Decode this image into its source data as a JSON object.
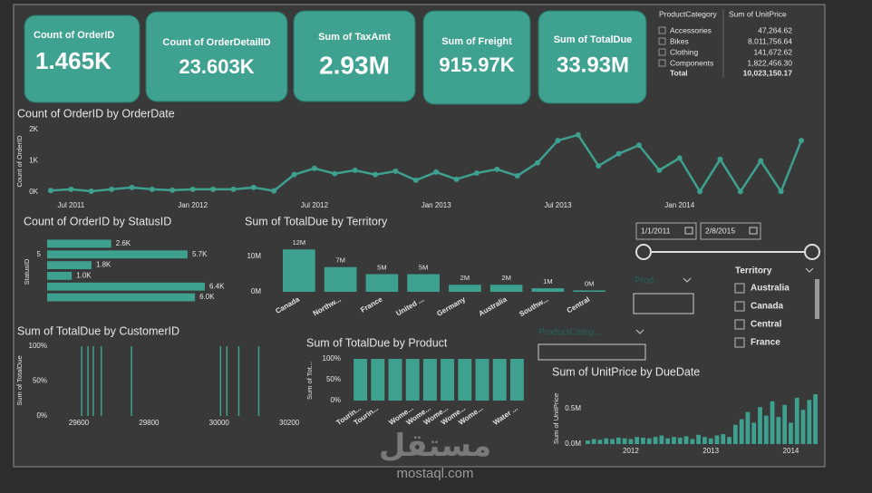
{
  "cards": [
    {
      "label": "Count of OrderID",
      "value": "1.465K"
    },
    {
      "label": "Count of OrderDetailID",
      "value": "23.603K"
    },
    {
      "label": "Sum of TaxAmt",
      "value": "2.93M"
    },
    {
      "label": "Sum of Freight",
      "value": "915.97K"
    },
    {
      "label": "Sum of TotalDue",
      "value": "33.93M"
    }
  ],
  "table": {
    "headers": [
      "ProductCategory",
      "Sum of UnitPrice"
    ],
    "rows": [
      [
        "Accessories",
        "47,264.62"
      ],
      [
        "Bikes",
        "8,011,756.64"
      ],
      [
        "Clothing",
        "141,672.62"
      ],
      [
        "Components",
        "1,822,456.30"
      ]
    ],
    "total": [
      "Total",
      "10,023,150.17"
    ]
  },
  "slicers": {
    "date_start": "1/1/2011",
    "date_end": "2/8/2015",
    "product": "Prod...",
    "product_category": "ProductCateg...",
    "territory": {
      "title": "Territory",
      "options": [
        "Australia",
        "Canada",
        "Central",
        "France"
      ]
    }
  },
  "watermark": {
    "logo": "مستقل",
    "site": "mostaql.com"
  },
  "chart_data": [
    {
      "type": "line",
      "title": "Count of OrderID by OrderDate",
      "ylabel": "Count of OrderID",
      "color": "#3ea08f",
      "categories": [
        null,
        "Jul 2011",
        null,
        null,
        null,
        null,
        null,
        "Jan 2012",
        null,
        null,
        null,
        null,
        null,
        "Jul 2012",
        null,
        null,
        null,
        null,
        null,
        "Jan 2013",
        null,
        null,
        null,
        null,
        null,
        "Jul 2013",
        null,
        null,
        null,
        null,
        null,
        "Jan 2014",
        null,
        null,
        null,
        null,
        null,
        null
      ],
      "values": [
        50,
        90,
        30,
        90,
        150,
        90,
        60,
        90,
        90,
        90,
        150,
        40,
        560,
        760,
        590,
        700,
        560,
        670,
        380,
        640,
        410,
        610,
        730,
        520,
        940,
        1650,
        1830,
        840,
        1230,
        1500,
        700,
        1090,
        20,
        1050,
        20,
        1000,
        20,
        1650
      ],
      "ylim": [
        0,
        2000
      ],
      "yticks": [
        {
          "value": 0,
          "label": "0K"
        },
        {
          "value": 1000,
          "label": "1K"
        },
        {
          "value": 2000,
          "label": "2K"
        }
      ]
    },
    {
      "type": "bar",
      "orientation": "horizontal",
      "title": "Count of OrderID by StatusID",
      "ylabel": "StatusID",
      "color": "#3ea08f",
      "categories": [
        null,
        "5",
        null,
        null,
        null,
        null
      ],
      "values": [
        2600,
        5700,
        1800,
        1000,
        6400,
        6000
      ],
      "value_labels": [
        "2.6K",
        "5.7K",
        "1.8K",
        "1.0K",
        "6.4K",
        "6.0K"
      ],
      "xlim": [
        0,
        6400
      ]
    },
    {
      "type": "bar",
      "title": "Sum of TotalDue by Territory",
      "color": "#3ea08f",
      "categories": [
        "Canada",
        "Northw...",
        "France",
        "United ...",
        "Germany",
        "Australia",
        "Southw...",
        "Central"
      ],
      "values": [
        12000000,
        7000000,
        5000000,
        5000000,
        2000000,
        2000000,
        1000000,
        400000
      ],
      "value_labels": [
        "12M",
        "7M",
        "5M",
        "5M",
        "2M",
        "2M",
        "1M",
        "0M"
      ],
      "ylim": [
        0,
        12500000
      ],
      "yticks": [
        {
          "value": 0,
          "label": "0M"
        },
        {
          "value": 10000000,
          "label": "10M"
        }
      ]
    },
    {
      "type": "bar",
      "title": "Sum of TotalDue by CustomerID",
      "ylabel": "Sum of TotalDue",
      "color": "#3ea08f",
      "x": [
        29608,
        29626,
        29641,
        29664,
        29750,
        30004,
        30022,
        30056,
        30113
      ],
      "values": [
        100,
        100,
        100,
        100,
        100,
        100,
        100,
        100,
        100
      ],
      "xlim": [
        29525,
        30241
      ],
      "xticks": [
        29600,
        29800,
        30000,
        30200
      ],
      "ylim": [
        0,
        100
      ],
      "yticks": [
        {
          "value": 0,
          "label": "0%"
        },
        {
          "value": 50,
          "label": "50%"
        },
        {
          "value": 100,
          "label": "100%"
        }
      ]
    },
    {
      "type": "bar",
      "title": "Sum of TotalDue by Product",
      "ylabel": "Sum of Tot...",
      "color": "#3ea08f",
      "categories": [
        "Tourin...",
        "Tourin...",
        null,
        "Wome...",
        "Wome...",
        "Wome...",
        "Wome...",
        "Wome...",
        null,
        "Water ..."
      ],
      "values": [
        100,
        100,
        100,
        100,
        100,
        100,
        100,
        100,
        100,
        100
      ],
      "ylim": [
        0,
        100
      ],
      "yticks": [
        {
          "value": 0,
          "label": "0%"
        },
        {
          "value": 50,
          "label": "50%"
        },
        {
          "value": 100,
          "label": "100%"
        }
      ]
    },
    {
      "type": "bar",
      "title": "Sum of UnitPrice by DueDate",
      "ylabel": "Sum of UnitPrice",
      "color": "#3ea08f",
      "categories": [
        null,
        null,
        null,
        null,
        null,
        null,
        null,
        "2012",
        null,
        null,
        null,
        null,
        null,
        null,
        null,
        null,
        null,
        null,
        null,
        null,
        "2013",
        null,
        null,
        null,
        null,
        null,
        null,
        null,
        null,
        null,
        null,
        null,
        null,
        "2014",
        null,
        null,
        null,
        null
      ],
      "values": [
        50000,
        70000,
        60000,
        80000,
        70000,
        90000,
        80000,
        70000,
        100000,
        90000,
        80000,
        100000,
        120000,
        80000,
        100000,
        90000,
        110000,
        70000,
        130000,
        100000,
        80000,
        120000,
        140000,
        100000,
        270000,
        350000,
        450000,
        300000,
        520000,
        400000,
        600000,
        380000,
        550000,
        300000,
        650000,
        480000,
        620000,
        700000
      ],
      "ylim": [
        0,
        700000
      ],
      "yticks": [
        {
          "value": 0,
          "label": "0.0M"
        },
        {
          "value": 500000,
          "label": "0.5M"
        }
      ]
    }
  ]
}
